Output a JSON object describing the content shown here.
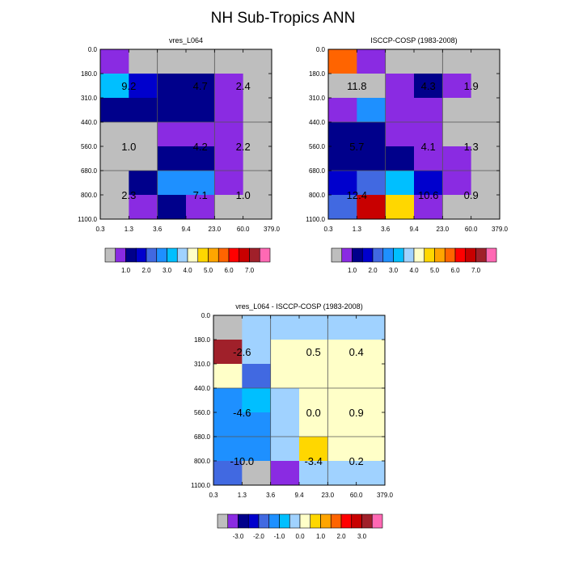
{
  "title": "NH Sub-Tropics ANN",
  "chart_data": [
    {
      "type": "heatmap",
      "title": "vres_L064",
      "x_ticks": [
        "0.3",
        "1.3",
        "3.6",
        "9.4",
        "23.0",
        "60.0",
        "379.0"
      ],
      "y_ticks": [
        "0.0",
        "180.0",
        "310.0",
        "440.0",
        "560.0",
        "680.0",
        "800.0",
        "1100.0"
      ],
      "cell_level_index_rows_top_to_bottom": [
        [
          1,
          0,
          0,
          0,
          0,
          0
        ],
        [
          6,
          3,
          2,
          2,
          1,
          0
        ],
        [
          2,
          2,
          2,
          2,
          1,
          0
        ],
        [
          0,
          0,
          1,
          1,
          1,
          0
        ],
        [
          0,
          0,
          2,
          2,
          1,
          0
        ],
        [
          0,
          2,
          5,
          5,
          1,
          0
        ],
        [
          0,
          1,
          2,
          1,
          0,
          0
        ]
      ],
      "box_values": [
        "9.2",
        "4.7",
        "2.4",
        "1.0",
        "4.2",
        "2.2",
        "2.3",
        "7.1",
        "1.0"
      ],
      "colorbar_labels": [
        "1.0",
        "2.0",
        "3.0",
        "4.0",
        "5.0",
        "6.0",
        "7.0"
      ]
    },
    {
      "type": "heatmap",
      "title": "ISCCP-COSP (1983-2008)",
      "x_ticks": [
        "0.3",
        "1.3",
        "3.6",
        "9.4",
        "23.0",
        "60.0",
        "379.0"
      ],
      "y_ticks": [
        "0.0",
        "180.0",
        "310.0",
        "440.0",
        "560.0",
        "680.0",
        "800.0",
        "1100.0"
      ],
      "cell_level_index_rows_top_to_bottom": [
        [
          11,
          1,
          0,
          0,
          0,
          0
        ],
        [
          0,
          0,
          1,
          2,
          1,
          0
        ],
        [
          1,
          5,
          1,
          1,
          0,
          0
        ],
        [
          2,
          2,
          1,
          1,
          0,
          0
        ],
        [
          2,
          2,
          2,
          1,
          1,
          0
        ],
        [
          3,
          4,
          6,
          3,
          1,
          0
        ],
        [
          4,
          13,
          9,
          1,
          0,
          0
        ]
      ],
      "box_values": [
        "11.8",
        "4.3",
        "1.9",
        "5.7",
        "4.1",
        "1.3",
        "12.4",
        "10.6",
        "0.9"
      ],
      "colorbar_labels": [
        "1.0",
        "2.0",
        "3.0",
        "4.0",
        "5.0",
        "6.0",
        "7.0"
      ]
    },
    {
      "type": "heatmap",
      "title": "vres_L064 - ISCCP-COSP (1983-2008)",
      "x_ticks": [
        "0.3",
        "1.3",
        "3.6",
        "9.4",
        "23.0",
        "60.0",
        "379.0"
      ],
      "y_ticks": [
        "0.0",
        "180.0",
        "310.0",
        "440.0",
        "560.0",
        "680.0",
        "800.0",
        "1100.0"
      ],
      "cell_level_index_rows_top_to_bottom": [
        [
          0,
          7,
          7,
          7,
          7,
          7
        ],
        [
          14,
          7,
          8,
          8,
          8,
          8
        ],
        [
          8,
          4,
          8,
          8,
          8,
          8
        ],
        [
          5,
          6,
          7,
          8,
          8,
          8
        ],
        [
          5,
          5,
          7,
          8,
          8,
          8
        ],
        [
          5,
          5,
          7,
          9,
          8,
          8
        ],
        [
          4,
          0,
          1,
          7,
          7,
          7
        ]
      ],
      "box_values": [
        "-2.6",
        "0.5",
        "0.4",
        "-4.6",
        "0.0",
        "0.9",
        "-10.0",
        "-3.4",
        "0.2"
      ],
      "colorbar_labels": [
        "-3.0",
        "-2.0",
        "-1.0",
        "0.0",
        "1.0",
        "2.0",
        "3.0"
      ]
    }
  ],
  "colors": {
    "palette": [
      "#bebebe",
      "#8a2be2",
      "#00008b",
      "#0000cd",
      "#4169e1",
      "#1e90ff",
      "#00bfff",
      "#a0d2ff",
      "#ffffc8",
      "#ffd700",
      "#ffa500",
      "#ff6400",
      "#ff0000",
      "#c80000",
      "#a0202a",
      "#ff69b4"
    ]
  }
}
